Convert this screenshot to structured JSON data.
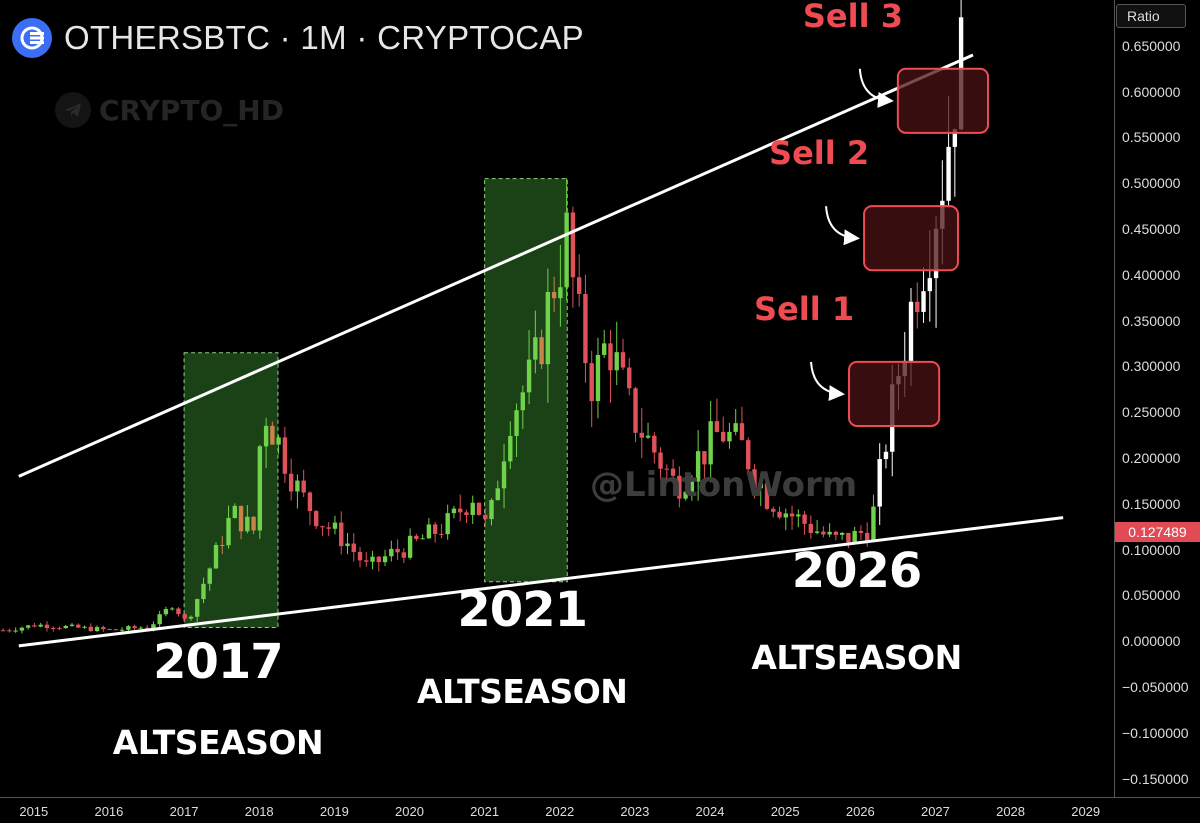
{
  "header": {
    "title": "OTHERSBTC · 1M · CRYPTOCAP",
    "logo_icon": "cryptocap-logo-icon"
  },
  "watermarks": {
    "top": "CRYPTO_HD",
    "top_icon": "telegram-icon",
    "middle": "@LintonWorm"
  },
  "axis": {
    "scale_button": "Ratio",
    "current_price": "0.127489",
    "price_color": "#e04b55",
    "y_ticks": [
      "0.650000",
      "0.600000",
      "0.550000",
      "0.500000",
      "0.450000",
      "0.400000",
      "0.350000",
      "0.300000",
      "0.250000",
      "0.200000",
      "0.150000",
      "0.100000",
      "0.050000",
      "0.000000",
      "−0.050000",
      "−0.100000",
      "−0.150000"
    ],
    "years": [
      "2015",
      "2016",
      "2017",
      "2018",
      "2019",
      "2020",
      "2021",
      "2022",
      "2023",
      "2024",
      "2025",
      "2026",
      "2027",
      "2028",
      "2029"
    ]
  },
  "annotations": {
    "seasons": [
      {
        "year": "2017",
        "label": "ALTSEASON"
      },
      {
        "year": "2021",
        "label": "ALTSEASON"
      },
      {
        "year": "2026",
        "label": "ALTSEASON"
      }
    ],
    "sells": [
      "Sell 1",
      "Sell 2",
      "Sell 3"
    ]
  },
  "colors": {
    "up": "#6fd24a",
    "down": "#e0525a",
    "projection": "#ffffff",
    "season_fill": "#1f4d1a",
    "sell_box": "#ee4b52"
  },
  "chart_data": {
    "type": "candlestick",
    "title": "OTHERSBTC · 1M · CRYPTOCAP",
    "xlabel": "",
    "ylabel": "Ratio",
    "ylim": [
      -0.17,
      0.7
    ],
    "xlim": [
      2014.55,
      2029.35
    ],
    "trendlines": [
      {
        "name": "upper",
        "from": [
          2014.8,
          0.18
        ],
        "to": [
          2027.5,
          0.64
        ]
      },
      {
        "name": "lower",
        "from": [
          2014.8,
          -0.005
        ],
        "to": [
          2028.7,
          0.135
        ]
      }
    ],
    "season_zones": [
      {
        "from": 2017.0,
        "to": 2018.25,
        "low": 0.015,
        "high": 0.315
      },
      {
        "from": 2021.0,
        "to": 2022.1,
        "low": 0.065,
        "high": 0.505
      }
    ],
    "sell_zones": [
      {
        "label": "Sell 1",
        "from": 2025.85,
        "to": 2027.05,
        "low": 0.235,
        "high": 0.305
      },
      {
        "label": "Sell 2",
        "from": 2026.05,
        "to": 2027.3,
        "low": 0.405,
        "high": 0.475
      },
      {
        "label": "Sell 3",
        "from": 2026.5,
        "to": 2027.7,
        "low": 0.555,
        "high": 0.625
      }
    ],
    "anchors": [
      [
        2014.55,
        0.012
      ],
      [
        2015.0,
        0.018
      ],
      [
        2015.5,
        0.015
      ],
      [
        2016.0,
        0.012
      ],
      [
        2016.5,
        0.016
      ],
      [
        2016.8,
        0.04
      ],
      [
        2017.0,
        0.02
      ],
      [
        2017.3,
        0.08
      ],
      [
        2017.6,
        0.14
      ],
      [
        2017.9,
        0.12
      ],
      [
        2018.0,
        0.26
      ],
      [
        2018.2,
        0.22
      ],
      [
        2018.5,
        0.16
      ],
      [
        2018.8,
        0.13
      ],
      [
        2019.1,
        0.11
      ],
      [
        2019.4,
        0.08
      ],
      [
        2019.7,
        0.095
      ],
      [
        2020.0,
        0.105
      ],
      [
        2020.3,
        0.12
      ],
      [
        2020.5,
        0.13
      ],
      [
        2020.8,
        0.16
      ],
      [
        2021.0,
        0.12
      ],
      [
        2021.3,
        0.25
      ],
      [
        2021.6,
        0.29
      ],
      [
        2021.9,
        0.4
      ],
      [
        2022.05,
        0.44
      ],
      [
        2022.2,
        0.35
      ],
      [
        2022.4,
        0.28
      ],
      [
        2022.6,
        0.33
      ],
      [
        2022.9,
        0.25
      ],
      [
        2023.2,
        0.21
      ],
      [
        2023.5,
        0.17
      ],
      [
        2023.8,
        0.2
      ],
      [
        2024.1,
        0.23
      ],
      [
        2024.4,
        0.21
      ],
      [
        2024.7,
        0.16
      ],
      [
        2025.0,
        0.14
      ],
      [
        2025.3,
        0.125
      ],
      [
        2025.6,
        0.11
      ],
      [
        2025.9,
        0.115
      ],
      [
        2026.1,
        0.125
      ],
      [
        2026.3,
        0.22
      ],
      [
        2026.5,
        0.31
      ],
      [
        2026.7,
        0.39
      ],
      [
        2026.9,
        0.45
      ],
      [
        2027.1,
        0.53
      ],
      [
        2027.25,
        0.63
      ]
    ]
  }
}
